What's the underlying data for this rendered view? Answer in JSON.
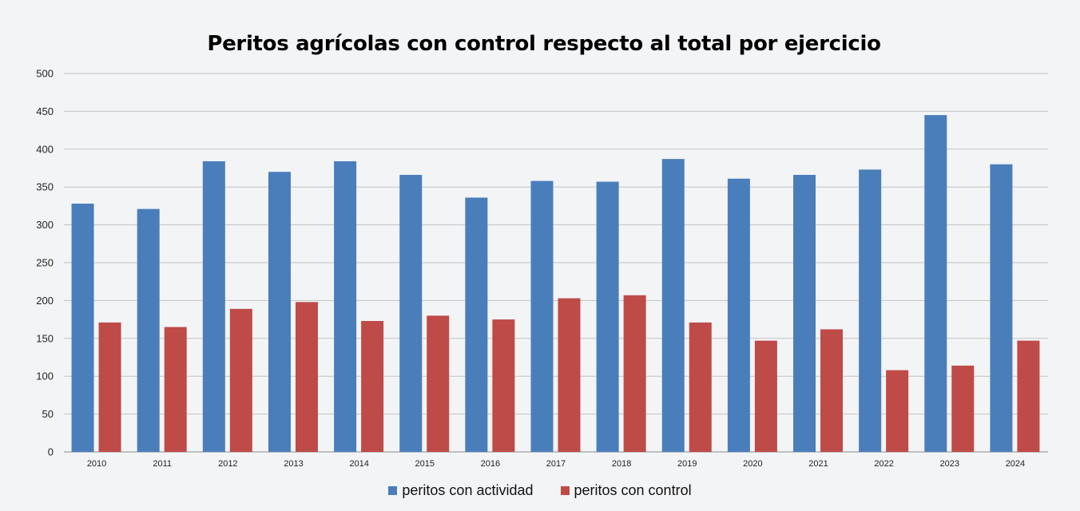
{
  "chart_data": {
    "type": "bar",
    "title": "Peritos agrícolas con control respecto al total por ejercicio",
    "xlabel": "",
    "ylabel": "",
    "ylim": [
      0,
      500
    ],
    "yticks": [
      0,
      50,
      100,
      150,
      200,
      250,
      300,
      350,
      400,
      450,
      500
    ],
    "grid": true,
    "legend_position": "bottom",
    "categories": [
      "2010",
      "2011",
      "2012",
      "2013",
      "2014",
      "2015",
      "2016",
      "2017",
      "2018",
      "2019",
      "2020",
      "2021",
      "2022",
      "2023",
      "2024"
    ],
    "series": [
      {
        "name": "peritos con actividad",
        "color": "#4a7ebb",
        "values": [
          328,
          321,
          384,
          370,
          384,
          366,
          336,
          358,
          357,
          387,
          361,
          366,
          373,
          445,
          380
        ]
      },
      {
        "name": "peritos con control",
        "color": "#be4b48",
        "values": [
          171,
          165,
          189,
          198,
          173,
          180,
          175,
          203,
          207,
          171,
          147,
          162,
          108,
          114,
          147
        ]
      }
    ]
  }
}
